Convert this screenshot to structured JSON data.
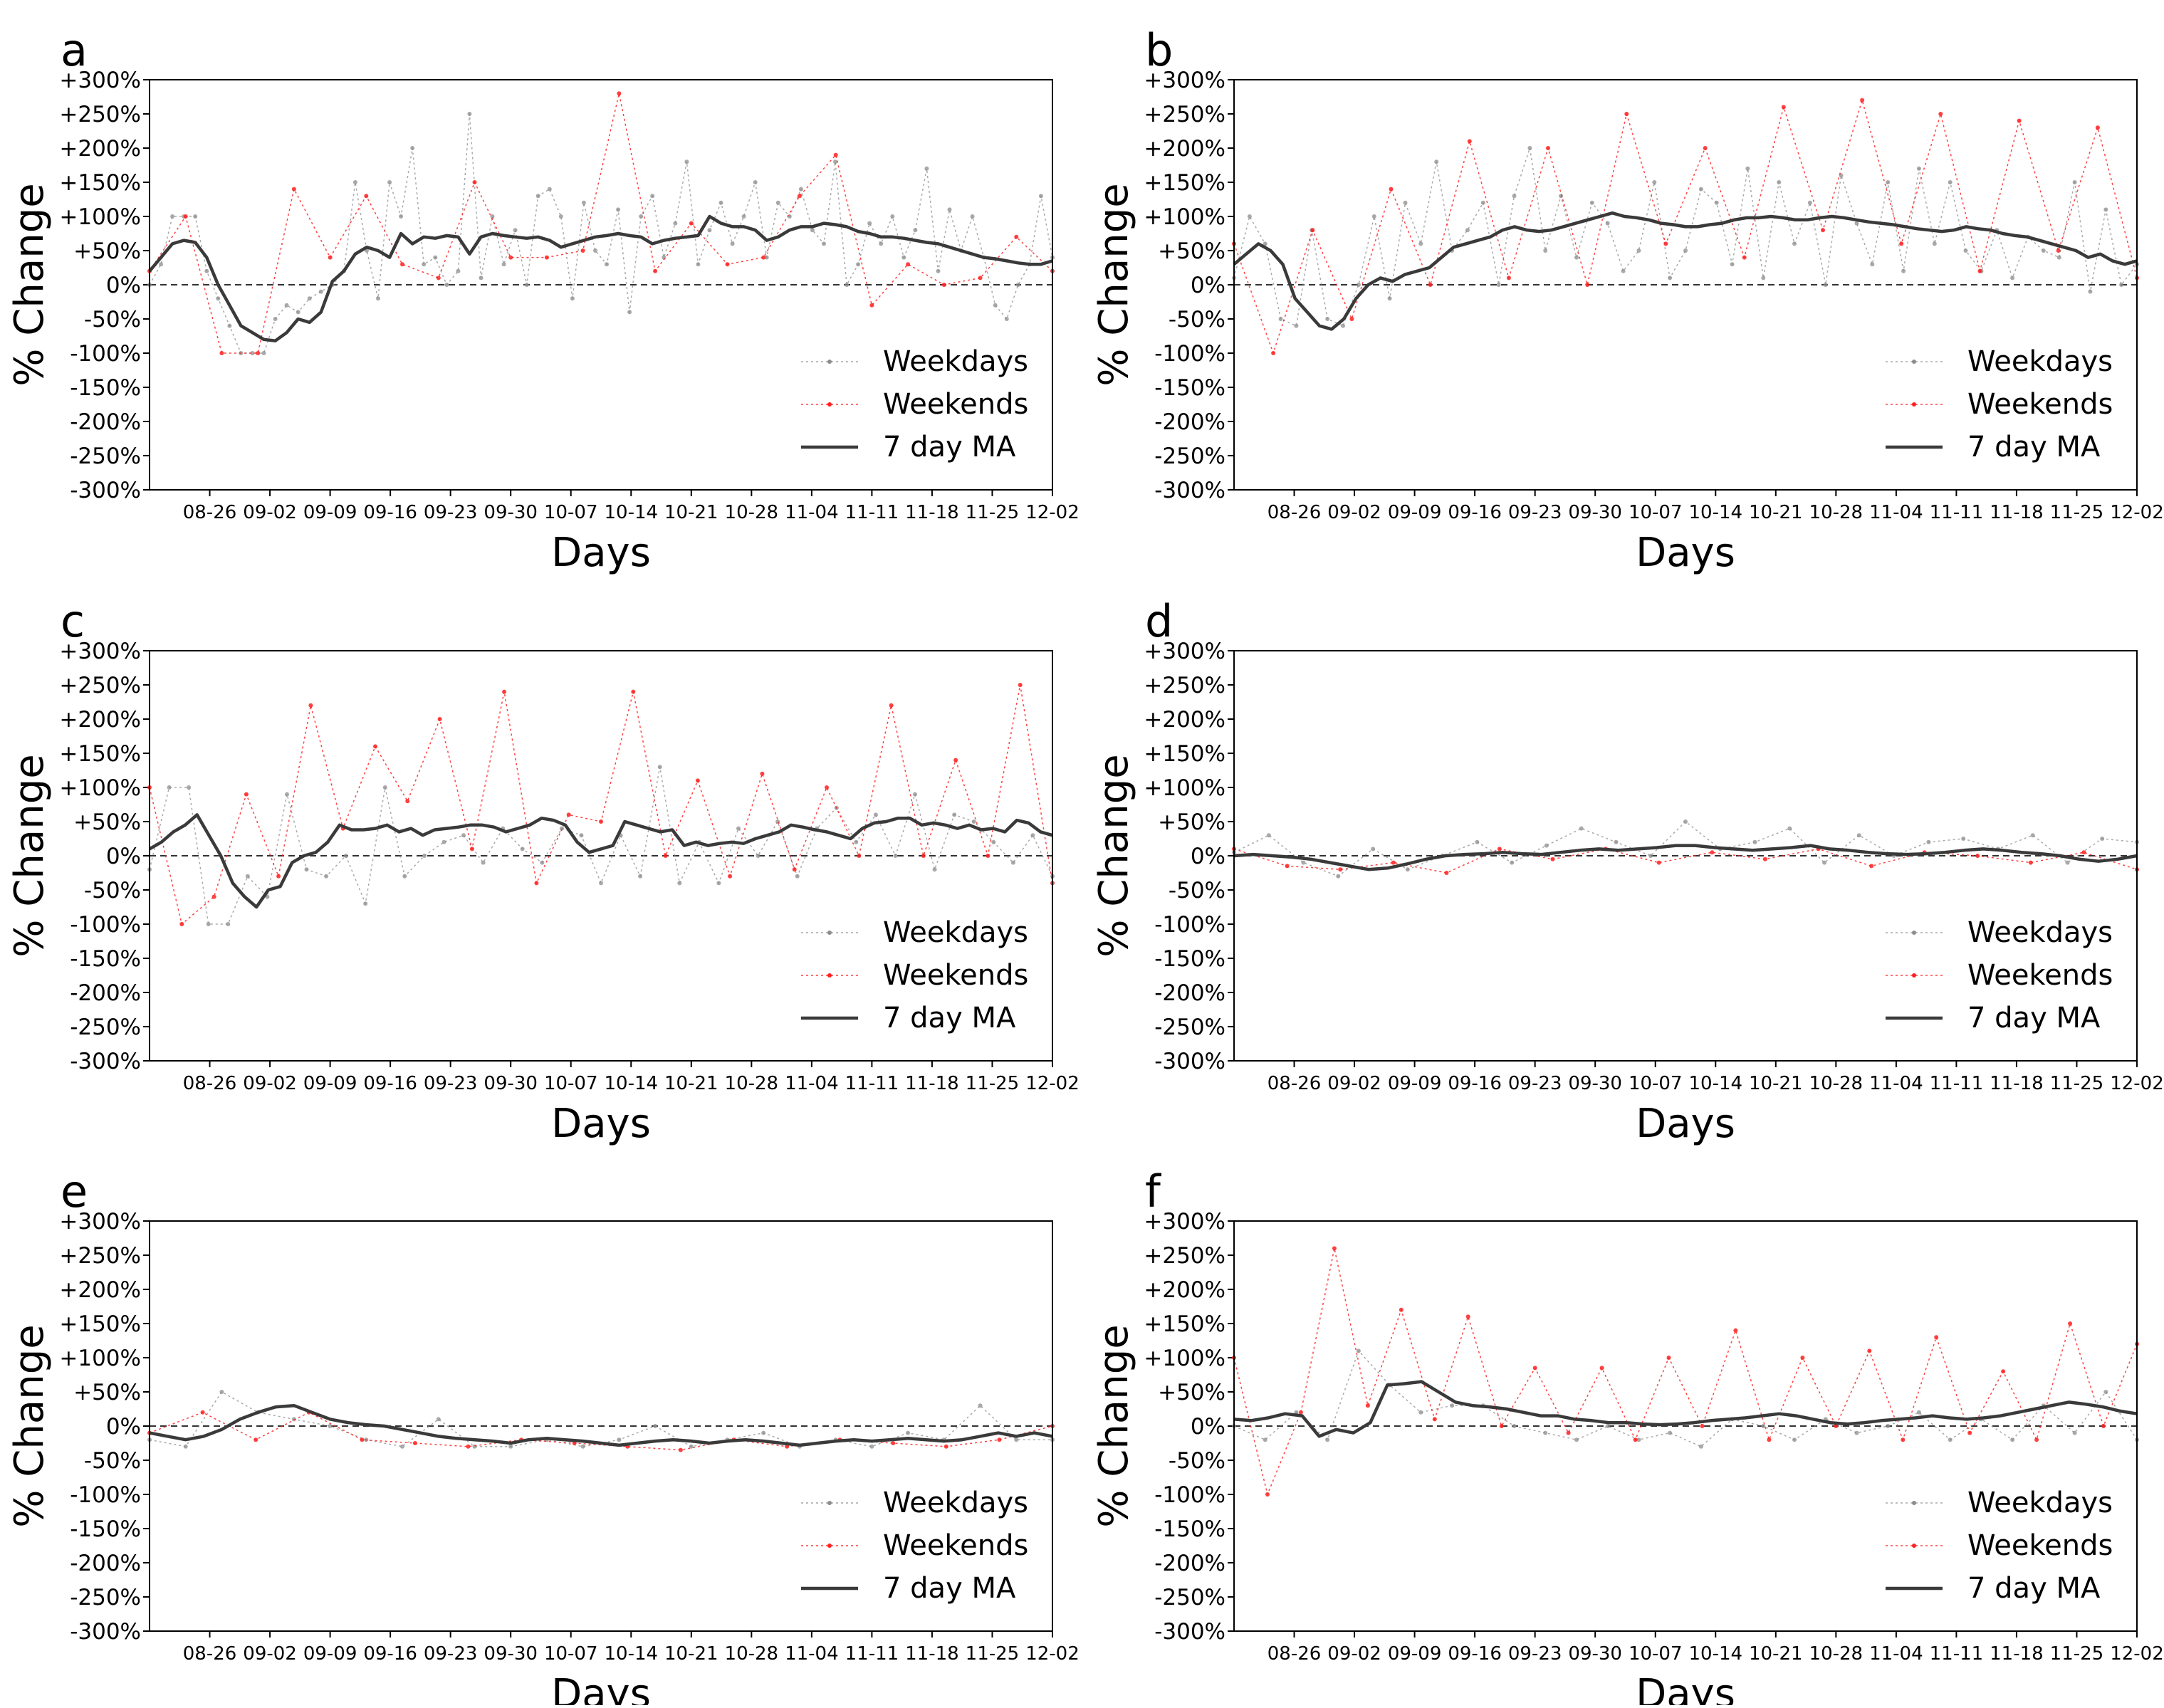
{
  "figure": {
    "panels": [
      "a",
      "b",
      "c",
      "d",
      "e",
      "f"
    ],
    "ylabel": "% Change",
    "xlabel": "Days",
    "yticks": [
      "+300%",
      "+250%",
      "+200%",
      "+150%",
      "+100%",
      "+50%",
      "0%",
      "-50%",
      "-100%",
      "-150%",
      "-200%",
      "-250%",
      "-300%"
    ],
    "xticks": [
      "08-26",
      "09-02",
      "09-09",
      "09-16",
      "09-23",
      "09-30",
      "10-07",
      "10-14",
      "10-21",
      "10-28",
      "11-04",
      "11-11",
      "11-18",
      "11-25",
      "12-02"
    ],
    "legend": [
      "Weekdays",
      "Weekends",
      "7 day MA"
    ],
    "colors": {
      "weekdays": "#8c8c8c",
      "weekends": "#ff2020",
      "ma": "#3a3a3a",
      "zero_line": "#333333"
    }
  },
  "chart_data": [
    {
      "panel": "a",
      "type": "line",
      "x_start": "08-19",
      "x_end": "12-02",
      "ylim": [
        -300,
        300
      ],
      "xlabel": "Days",
      "ylabel": "% Change",
      "legend_position": "lower-right",
      "series": [
        {
          "name": "7 day MA",
          "values": [
            20,
            40,
            60,
            65,
            62,
            40,
            0,
            -30,
            -60,
            -70,
            -80,
            -82,
            -70,
            -50,
            -55,
            -40,
            5,
            20,
            45,
            55,
            50,
            40,
            75,
            60,
            70,
            68,
            72,
            70,
            45,
            70,
            75,
            72,
            70,
            68,
            70,
            65,
            55,
            60,
            65,
            70,
            72,
            75,
            72,
            70,
            60,
            65,
            68,
            70,
            72,
            100,
            90,
            85,
            85,
            80,
            65,
            70,
            80,
            85,
            85,
            90,
            88,
            85,
            78,
            75,
            70,
            70,
            68,
            65,
            62,
            60,
            55,
            50,
            45,
            40,
            38,
            35,
            32,
            30,
            30,
            35
          ]
        },
        {
          "name": "Weekdays",
          "values": [
            0,
            30,
            100,
            100,
            100,
            20,
            -20,
            -60,
            -100,
            -100,
            -100,
            -50,
            -30,
            -40,
            -20,
            -10,
            0,
            20,
            150,
            50,
            -20,
            150,
            100,
            200,
            30,
            40,
            0,
            20,
            250,
            10,
            100,
            30,
            80,
            0,
            130,
            140,
            100,
            -20,
            120,
            50,
            30,
            110,
            -40,
            100,
            130,
            40,
            90,
            180,
            30,
            80,
            120,
            60,
            100,
            150,
            40,
            120,
            100,
            140,
            80,
            60,
            180,
            0,
            30,
            90,
            60,
            100,
            40,
            80,
            170,
            20,
            110,
            50,
            100,
            40,
            -30,
            -50,
            0,
            30,
            130,
            40
          ]
        },
        {
          "name": "Weekends",
          "values": [
            20,
            100,
            -100,
            -100,
            140,
            40,
            130,
            30,
            10,
            150,
            40,
            40,
            50,
            280,
            20,
            90,
            30,
            40,
            130,
            190,
            -30,
            30,
            0,
            10,
            70,
            20
          ]
        }
      ]
    },
    {
      "panel": "b",
      "type": "line",
      "x_start": "08-19",
      "x_end": "12-02",
      "ylim": [
        -300,
        300
      ],
      "xlabel": "Days",
      "ylabel": "% Change",
      "legend_position": "lower-right",
      "series": [
        {
          "name": "7 day MA",
          "values": [
            30,
            45,
            60,
            50,
            30,
            -20,
            -40,
            -60,
            -65,
            -50,
            -20,
            0,
            10,
            5,
            15,
            20,
            25,
            40,
            55,
            60,
            65,
            70,
            80,
            85,
            80,
            78,
            80,
            85,
            90,
            95,
            100,
            105,
            100,
            98,
            95,
            90,
            88,
            85,
            85,
            88,
            90,
            95,
            98,
            98,
            100,
            98,
            95,
            95,
            98,
            100,
            98,
            95,
            92,
            90,
            88,
            85,
            82,
            80,
            78,
            80,
            85,
            82,
            80,
            75,
            72,
            70,
            65,
            60,
            55,
            50,
            40,
            45,
            35,
            30,
            35
          ]
        },
        {
          "name": "Weekdays",
          "values": [
            10,
            100,
            60,
            -50,
            -60,
            80,
            -50,
            -60,
            0,
            100,
            -20,
            120,
            60,
            180,
            50,
            80,
            120,
            0,
            130,
            200,
            50,
            130,
            40,
            120,
            90,
            20,
            50,
            150,
            10,
            50,
            140,
            120,
            30,
            170,
            10,
            150,
            60,
            120,
            0,
            160,
            90,
            30,
            150,
            20,
            170,
            60,
            150,
            50,
            20,
            80,
            10,
            70,
            50,
            40,
            150,
            -10,
            110,
            0,
            30
          ]
        },
        {
          "name": "Weekends",
          "values": [
            60,
            -100,
            80,
            -50,
            140,
            0,
            210,
            10,
            200,
            0,
            250,
            60,
            200,
            40,
            260,
            80,
            270,
            60,
            250,
            20,
            240,
            50,
            230,
            10
          ]
        }
      ]
    },
    {
      "panel": "c",
      "type": "line",
      "x_start": "08-19",
      "x_end": "12-02",
      "ylim": [
        -300,
        300
      ],
      "xlabel": "Days",
      "ylabel": "% Change",
      "legend_position": "lower-right",
      "series": [
        {
          "name": "7 day MA",
          "values": [
            10,
            20,
            35,
            45,
            60,
            30,
            0,
            -40,
            -60,
            -75,
            -50,
            -45,
            -10,
            0,
            5,
            20,
            45,
            38,
            38,
            40,
            45,
            35,
            40,
            30,
            38,
            40,
            42,
            45,
            45,
            42,
            35,
            40,
            45,
            55,
            52,
            45,
            20,
            5,
            10,
            15,
            50,
            45,
            40,
            35,
            38,
            15,
            20,
            15,
            18,
            20,
            18,
            25,
            30,
            35,
            45,
            42,
            38,
            35,
            30,
            25,
            40,
            48,
            50,
            55,
            55,
            45,
            48,
            45,
            40,
            45,
            38,
            40,
            35,
            52,
            48,
            35,
            30
          ]
        },
        {
          "name": "Weekdays",
          "values": [
            -20,
            100,
            100,
            -100,
            -100,
            -30,
            -60,
            90,
            -20,
            -30,
            0,
            -70,
            100,
            -30,
            0,
            20,
            30,
            -10,
            40,
            10,
            -10,
            40,
            30,
            -40,
            30,
            -30,
            130,
            -40,
            20,
            -40,
            40,
            0,
            50,
            -30,
            40,
            70,
            20,
            60,
            0,
            90,
            -20,
            60,
            50,
            20,
            -10,
            30,
            -30
          ]
        },
        {
          "name": "Weekends",
          "values": [
            100,
            -100,
            -60,
            90,
            -30,
            220,
            40,
            160,
            80,
            200,
            10,
            240,
            -40,
            60,
            50,
            240,
            0,
            110,
            -30,
            120,
            -20,
            100,
            0,
            220,
            0,
            140,
            0,
            250,
            -40
          ]
        }
      ]
    },
    {
      "panel": "d",
      "type": "line",
      "x_start": "08-19",
      "x_end": "12-02",
      "ylim": [
        -300,
        300
      ],
      "xlabel": "Days",
      "ylabel": "% Change",
      "legend_position": "lower-right",
      "series": [
        {
          "name": "7 day MA",
          "values": [
            0,
            2,
            0,
            -2,
            -5,
            -10,
            -15,
            -20,
            -18,
            -12,
            -5,
            0,
            2,
            3,
            5,
            3,
            2,
            5,
            8,
            10,
            8,
            10,
            12,
            15,
            15,
            12,
            10,
            8,
            10,
            12,
            15,
            10,
            8,
            5,
            3,
            2,
            3,
            5,
            8,
            10,
            8,
            5,
            3,
            0,
            -5,
            -8,
            -5,
            0
          ]
        },
        {
          "name": "Weekdays",
          "values": [
            5,
            30,
            -10,
            -30,
            10,
            -20,
            0,
            20,
            -10,
            15,
            40,
            20,
            0,
            50,
            10,
            20,
            40,
            -10,
            30,
            0,
            20,
            25,
            10,
            30,
            -10,
            25,
            20
          ]
        },
        {
          "name": "Weekends",
          "values": [
            10,
            -15,
            -20,
            -10,
            -25,
            10,
            -5,
            10,
            -10,
            5,
            -5,
            10,
            -15,
            5,
            0,
            -10,
            5,
            -20
          ]
        }
      ]
    },
    {
      "panel": "e",
      "type": "line",
      "x_start": "08-19",
      "x_end": "12-02",
      "ylim": [
        -300,
        300
      ],
      "xlabel": "Days",
      "ylabel": "% Change",
      "legend_position": "lower-right",
      "series": [
        {
          "name": "7 day MA",
          "values": [
            -10,
            -15,
            -20,
            -15,
            -5,
            10,
            20,
            28,
            30,
            20,
            10,
            5,
            2,
            0,
            -5,
            -10,
            -15,
            -18,
            -20,
            -22,
            -25,
            -20,
            -18,
            -20,
            -22,
            -25,
            -28,
            -25,
            -22,
            -20,
            -22,
            -25,
            -22,
            -20,
            -22,
            -25,
            -28,
            -25,
            -22,
            -20,
            -22,
            -20,
            -18,
            -20,
            -22,
            -20,
            -15,
            -10,
            -15,
            -10,
            -15
          ]
        },
        {
          "name": "Weekdays",
          "values": [
            -20,
            -30,
            50,
            20,
            10,
            0,
            -20,
            -30,
            10,
            -30,
            -30,
            -20,
            -30,
            -20,
            0,
            -30,
            -20,
            -10,
            -30,
            -20,
            -30,
            -10,
            -20,
            30,
            -20,
            -20
          ]
        },
        {
          "name": "Weekends",
          "values": [
            -10,
            20,
            -20,
            20,
            -20,
            -25,
            -30,
            -20,
            -25,
            -30,
            -35,
            -20,
            -30,
            -20,
            -25,
            -30,
            -20,
            0
          ]
        }
      ]
    },
    {
      "panel": "f",
      "type": "line",
      "x_start": "08-19",
      "x_end": "12-02",
      "ylim": [
        -300,
        300
      ],
      "xlabel": "Days",
      "ylabel": "% Change",
      "legend_position": "lower-right",
      "series": [
        {
          "name": "7 day MA",
          "values": [
            10,
            8,
            12,
            18,
            15,
            -15,
            -5,
            -10,
            5,
            60,
            62,
            65,
            50,
            35,
            30,
            28,
            25,
            20,
            15,
            15,
            10,
            8,
            5,
            5,
            3,
            2,
            3,
            5,
            8,
            10,
            12,
            15,
            18,
            15,
            10,
            5,
            3,
            5,
            8,
            10,
            12,
            15,
            12,
            10,
            12,
            15,
            20,
            25,
            30,
            35,
            32,
            28,
            22,
            18
          ]
        },
        {
          "name": "Weekdays",
          "values": [
            0,
            -20,
            20,
            -20,
            110,
            60,
            20,
            30,
            30,
            0,
            -10,
            -20,
            0,
            -20,
            -10,
            -30,
            10,
            0,
            -20,
            10,
            -10,
            0,
            20,
            -20,
            10,
            -20,
            30,
            -10,
            50,
            -20
          ]
        },
        {
          "name": "Weekends",
          "values": [
            100,
            -100,
            20,
            260,
            30,
            170,
            10,
            160,
            0,
            85,
            -10,
            85,
            -20,
            100,
            0,
            140,
            -20,
            100,
            0,
            110,
            -20,
            130,
            -10,
            80,
            -20,
            150,
            0,
            120
          ]
        }
      ]
    }
  ]
}
